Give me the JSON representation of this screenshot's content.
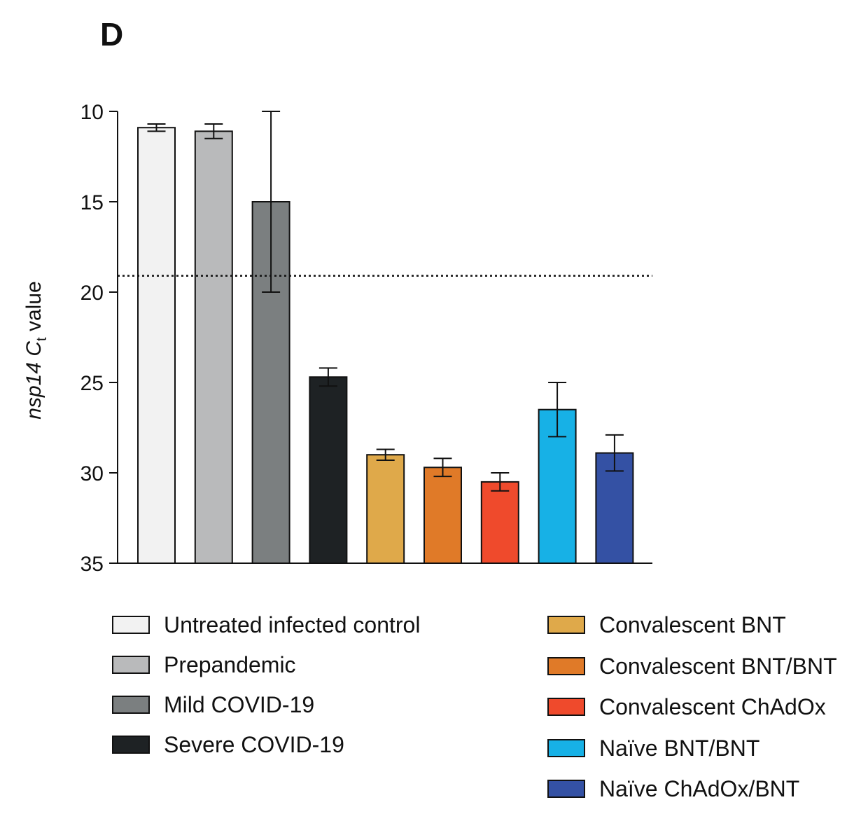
{
  "panel_label": "D",
  "chart_data": {
    "type": "bar",
    "categories": [
      "Untreated infected control",
      "Prepandemic",
      "Mild COVID-19",
      "Severe COVID-19",
      "Convalescent BNT",
      "Convalescent BNT/BNT",
      "Convalescent ChAdOx",
      "Naïve BNT/BNT",
      "Naïve ChAdOx/BNT"
    ],
    "values": [
      10.9,
      11.1,
      15.0,
      24.7,
      29.0,
      29.7,
      30.5,
      26.5,
      28.9
    ],
    "error": [
      0.2,
      0.4,
      5.0,
      0.5,
      0.3,
      0.5,
      0.5,
      1.5,
      1.0
    ],
    "colors": [
      "#f2f2f2",
      "#b9babb",
      "#7b7f80",
      "#1e2224",
      "#dfa94a",
      "#e07a28",
      "#ef4a2c",
      "#17b1e6",
      "#3451a4"
    ],
    "ylabel_italic": "nsp14 C",
    "ylabel_sub": "t",
    "ylabel_rest": " value",
    "ylim": [
      35,
      10
    ],
    "y_inverted": true,
    "yticks": [
      10,
      15,
      20,
      25,
      30,
      35
    ],
    "threshold_line": 19.1,
    "legend_placement": "bottom"
  }
}
